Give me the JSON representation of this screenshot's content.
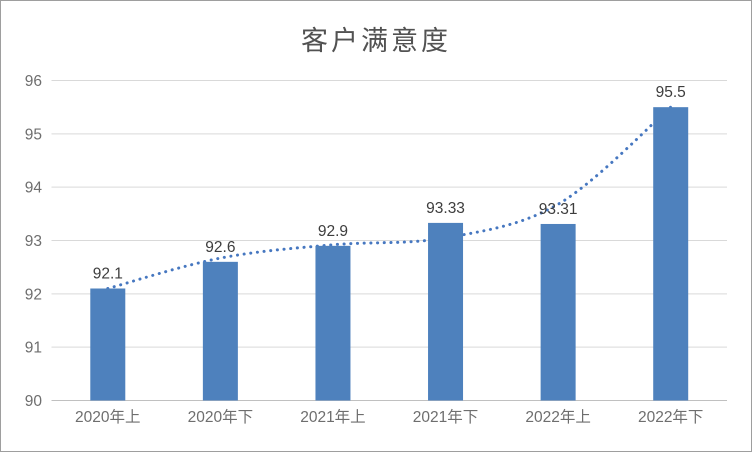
{
  "chart_data": {
    "type": "bar",
    "title": "客户满意度",
    "categories": [
      "2020年上",
      "2020年下",
      "2021年上",
      "2021年下",
      "2022年上",
      "2022年下"
    ],
    "values": [
      92.1,
      92.6,
      92.9,
      93.33,
      93.31,
      95.5
    ],
    "data_labels": [
      "92.1",
      "92.6",
      "92.9",
      "93.33",
      "93.31",
      "95.5"
    ],
    "ylim": [
      90,
      96
    ],
    "ytick_step": 1,
    "yticks": [
      "90",
      "91",
      "92",
      "93",
      "94",
      "95",
      "96"
    ],
    "xlabel": "",
    "ylabel": "",
    "grid": true,
    "legend": false,
    "bar_color": "#4e81bd",
    "grid_color": "#d9d9d9",
    "axis_line_color": "#c0c0c0",
    "tick_label_color": "#6e6e6e",
    "data_label_color": "#3d3d3d",
    "title_color": "#525252",
    "trendline": {
      "style": "dotted",
      "color": "#4677c0",
      "points": [
        92.1,
        92.67,
        92.92,
        93.05,
        93.68,
        95.5
      ]
    }
  }
}
